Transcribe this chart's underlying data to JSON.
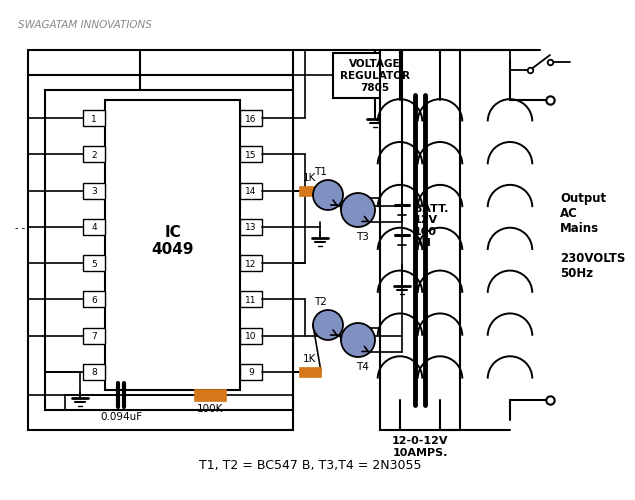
{
  "title": "SWAGATAM INNOVATIONS",
  "background_color": "#ffffff",
  "line_color": "#000000",
  "resistor_color": "#d4781a",
  "ic_label": "IC\n4049",
  "voltage_reg_label": "VOLTAGE\nREGULATOR\n7805",
  "batt_label": "BATT.\n12V\n100\nAH",
  "output_label": "Output\nAC\nMains\n\n230VOLTS\n50Hz",
  "transformer_label": "12-0-12V\n10AMPS.",
  "footnote": "T1, T2 = BC547 B, T3,T4 = 2N3055",
  "res1_label": "1K",
  "res2_label": "1K",
  "res3_label": "100K",
  "cap_label": "0.094uF",
  "t1_label": "T1",
  "t2_label": "T2",
  "t3_label": "T3",
  "t4_label": "T4",
  "trans_color": "#8090c0"
}
